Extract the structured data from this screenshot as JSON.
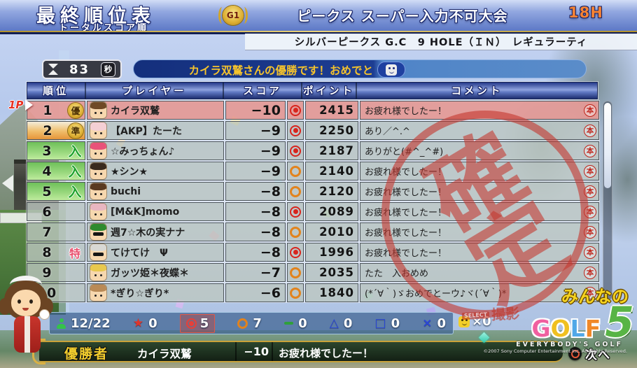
{
  "header": {
    "title": "最終順位表",
    "subtitle": "トータルスコア順",
    "grade_badge": "G1",
    "tournament": "ピークス スーパー入力不可大会",
    "holes": "18H",
    "course_info": "シルバーピークス G.C　9 HOLE（ＩＮ）　レギュラーティ"
  },
  "timer": {
    "value": "83",
    "unit": "秒",
    "icon": "hourglass"
  },
  "ticker": {
    "message": "カイラ双鷲さんの優勝です！おめでと",
    "button_icon": "smiley"
  },
  "player_marker": "1P",
  "table": {
    "columns": {
      "rank": "順位",
      "player": "プレイヤー",
      "score": "スコア",
      "points": "ポイント",
      "comment": "コメント"
    },
    "comment_icon": "本",
    "rows": [
      {
        "rank": "1",
        "badge": "優",
        "badge_type": "gold",
        "tier": "red",
        "avatar": "brown-hair-girl",
        "name": "カイラ双鷲",
        "score": "−10",
        "result": "double",
        "points": "2415",
        "comment": "お疲れ様でしたー！",
        "highlight": "1"
      },
      {
        "rank": "2",
        "badge": "準",
        "badge_type": "gold",
        "tier": "orange",
        "avatar": "pink-hat",
        "name": "【AKP】たーた",
        "score": "−9",
        "result": "double",
        "points": "2250",
        "comment": "あり／^.^",
        "highlight": "0"
      },
      {
        "rank": "3",
        "badge": "入",
        "badge_type": "green",
        "tier": "green",
        "avatar": "pink-hair",
        "name": "☆みっちょん♪",
        "score": "−9",
        "result": "double",
        "points": "2187",
        "comment": "ありがと(#^_^#)",
        "highlight": "0"
      },
      {
        "rank": "4",
        "badge": "入",
        "badge_type": "green",
        "tier": "green",
        "avatar": "dark-spiky",
        "name": "★シン★",
        "score": "−9",
        "result": "single",
        "points": "2140",
        "comment": "お疲れ様でしたー！",
        "highlight": "0"
      },
      {
        "rank": "5",
        "badge": "入",
        "badge_type": "green",
        "tier": "green",
        "avatar": "brown-boy",
        "name": "buchi",
        "score": "−8",
        "result": "single",
        "points": "2120",
        "comment": "お疲れ様でしたー！",
        "highlight": "0"
      },
      {
        "rank": "6",
        "badge": "",
        "badge_type": "none",
        "tier": "gray",
        "avatar": "headband-girl",
        "name": "[M&K]momo",
        "score": "−8",
        "result": "double",
        "points": "2089",
        "comment": "お疲れ様でしたー！",
        "highlight": "0"
      },
      {
        "rank": "7",
        "badge": "",
        "badge_type": "none",
        "tier": "gray",
        "avatar": "green-cap-shades",
        "name": "週7☆木の実ナナ",
        "score": "−8",
        "result": "single",
        "points": "2010",
        "comment": "お疲れ様でしたー！",
        "highlight": "0"
      },
      {
        "rank": "8",
        "badge": "特",
        "badge_type": "pink",
        "tier": "gray",
        "avatar": "gray-shades",
        "name": "てけてけ　Ψ",
        "score": "−8",
        "result": "double",
        "points": "1996",
        "comment": "お疲れ様でしたー！",
        "highlight": "0"
      },
      {
        "rank": "9",
        "badge": "",
        "badge_type": "none",
        "tier": "gray",
        "avatar": "blonde",
        "name": "ガッツ姫＊夜蝶＊",
        "score": "−7",
        "result": "single",
        "points": "2035",
        "comment": "たた　入おめめ",
        "highlight": "0"
      },
      {
        "rank": "10",
        "badge": "",
        "badge_type": "none",
        "tier": "gray",
        "avatar": "light-brown",
        "name": "*ぎり☆ぎり*",
        "score": "−6",
        "result": "single",
        "points": "1840",
        "comment": "(*´∀｀)ゞおめでとーウ♪ヾ(´∀｀)*",
        "highlight": "0"
      }
    ]
  },
  "stamp": "確定",
  "stats_bar": {
    "players": "12/22",
    "star": "0",
    "double_circle": "5",
    "circle": "7",
    "dash": "0",
    "triangle_glyph": "△",
    "triangle": "0",
    "square_glyph": "□",
    "square": "0",
    "cross_glyph": "×",
    "cross": "0",
    "smiley": "×0"
  },
  "winner_bar": {
    "label": "優勝者",
    "name": "カイラ双鷲",
    "score": "−10",
    "comment": "お疲れ様でしたー！"
  },
  "footer": {
    "next_label": "次へ",
    "select_label": "SELECT",
    "capture_label": "撮影",
    "logo_top": "みんなの",
    "logo_g": "G",
    "logo_o": "O",
    "logo_l": "L",
    "logo_f": "F",
    "logo_number": "5",
    "logo_sub": "EVERYBODY'S GOLF",
    "copyright": "©2007 Sony Computer Entertainment Inc. All Rights Reserved."
  },
  "colors": {
    "accent_red": "#c4362d",
    "row_highlight": "#e79994",
    "gold": "#ddae32",
    "rank_green": "#7cc95e",
    "result_double": "#d8251d",
    "result_single": "#e2831d",
    "ticker_text": "#f5c32c",
    "logo_green": "#58b445",
    "holes_orange": "#f58233"
  }
}
